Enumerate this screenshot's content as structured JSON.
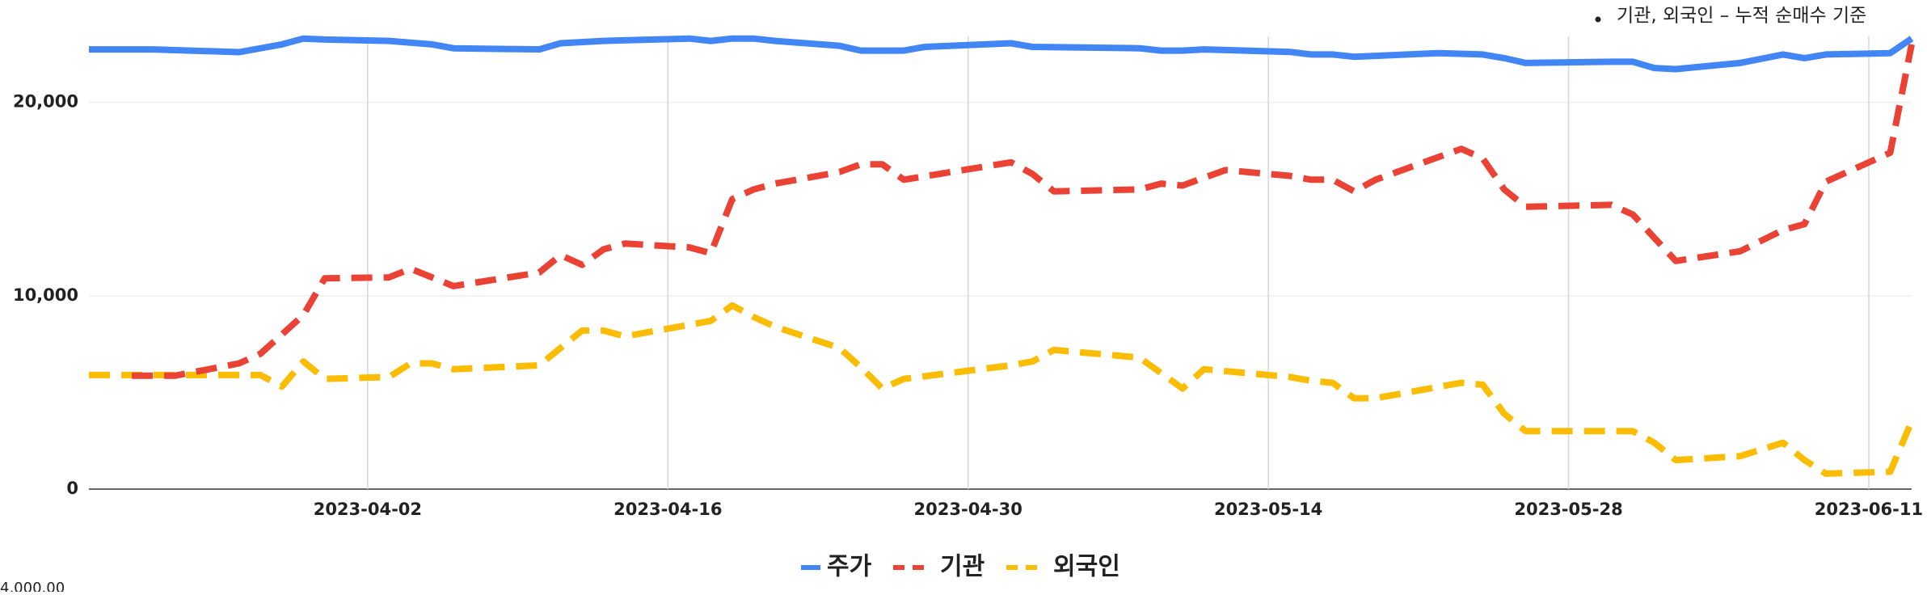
{
  "chart_data": {
    "type": "line",
    "note": "기관, 외국인 – 누적 순매수 기준",
    "corner_text": "4,000.00",
    "xlim": [
      "2023-03-20",
      "2023-06-13"
    ],
    "xticks": [
      "2023-04-02",
      "2023-04-16",
      "2023-04-30",
      "2023-05-14",
      "2023-05-28",
      "2023-06-11"
    ],
    "ylim": [
      0,
      24000
    ],
    "yticks": [
      0,
      {
        "value": 10000,
        "label": "10,000"
      },
      {
        "value": 20000,
        "label": "20,000"
      }
    ],
    "grid": true,
    "legend": "bottom",
    "series": [
      {
        "name": "주가",
        "color": "#4285f4",
        "dash": false,
        "x": [
          "2023-03-20",
          "2023-03-23",
          "2023-03-27",
          "2023-03-29",
          "2023-03-30",
          "2023-03-31",
          "2023-04-03",
          "2023-04-05",
          "2023-04-06",
          "2023-04-10",
          "2023-04-11",
          "2023-04-13",
          "2023-04-17",
          "2023-04-18",
          "2023-04-19",
          "2023-04-20",
          "2023-04-21",
          "2023-04-24",
          "2023-04-25",
          "2023-04-27",
          "2023-04-28",
          "2023-05-02",
          "2023-05-03",
          "2023-05-08",
          "2023-05-09",
          "2023-05-10",
          "2023-05-11",
          "2023-05-15",
          "2023-05-16",
          "2023-05-17",
          "2023-05-18",
          "2023-05-22",
          "2023-05-24",
          "2023-05-25",
          "2023-05-26",
          "2023-05-30",
          "2023-05-31",
          "2023-06-01",
          "2023-06-02",
          "2023-06-05",
          "2023-06-07",
          "2023-06-08",
          "2023-06-09",
          "2023-06-12",
          "2023-06-13"
        ],
        "values": [
          22740,
          22740,
          22600,
          23000,
          23300,
          23250,
          23180,
          23000,
          22800,
          22740,
          23060,
          23180,
          23300,
          23180,
          23300,
          23300,
          23180,
          22930,
          22680,
          22680,
          22870,
          23060,
          22870,
          22800,
          22680,
          22680,
          22740,
          22610,
          22480,
          22480,
          22360,
          22550,
          22480,
          22290,
          22040,
          22100,
          22100,
          21780,
          21720,
          22040,
          22480,
          22290,
          22480,
          22550,
          23300
        ]
      },
      {
        "name": "기관",
        "color": "#ea4335",
        "dash": true,
        "x": [
          "2023-03-22",
          "2023-03-24",
          "2023-03-27",
          "2023-03-28",
          "2023-03-30",
          "2023-03-31",
          "2023-04-03",
          "2023-04-04",
          "2023-04-06",
          "2023-04-10",
          "2023-04-11",
          "2023-04-12",
          "2023-04-13",
          "2023-04-14",
          "2023-04-17",
          "2023-04-18",
          "2023-04-19",
          "2023-04-20",
          "2023-04-21",
          "2023-04-24",
          "2023-04-25",
          "2023-04-26",
          "2023-04-27",
          "2023-05-02",
          "2023-05-03",
          "2023-05-04",
          "2023-05-08",
          "2023-05-09",
          "2023-05-10",
          "2023-05-11",
          "2023-05-12",
          "2023-05-15",
          "2023-05-16",
          "2023-05-17",
          "2023-05-18",
          "2023-05-19",
          "2023-05-22",
          "2023-05-23",
          "2023-05-24",
          "2023-05-25",
          "2023-05-26",
          "2023-05-30",
          "2023-05-31",
          "2023-06-01",
          "2023-06-02",
          "2023-06-05",
          "2023-06-07",
          "2023-06-08",
          "2023-06-09",
          "2023-06-12",
          "2023-06-13"
        ],
        "values": [
          5860,
          5860,
          6500,
          7000,
          9000,
          10900,
          10950,
          11400,
          10500,
          11200,
          12100,
          11600,
          12400,
          12700,
          12500,
          12200,
          15000,
          15500,
          15800,
          16400,
          16800,
          16800,
          16000,
          16900,
          16300,
          15400,
          15500,
          15800,
          15700,
          16100,
          16500,
          16200,
          16000,
          16000,
          15400,
          16000,
          17200,
          17600,
          17100,
          15500,
          14600,
          14700,
          14200,
          13000,
          11800,
          12300,
          13400,
          13700,
          15900,
          17400,
          23000
        ]
      },
      {
        "name": "외국인",
        "color": "#fbbc04",
        "dash": true,
        "x": [
          "2023-03-20",
          "2023-03-27",
          "2023-03-28",
          "2023-03-29",
          "2023-03-30",
          "2023-03-31",
          "2023-04-03",
          "2023-04-04",
          "2023-04-05",
          "2023-04-06",
          "2023-04-10",
          "2023-04-11",
          "2023-04-12",
          "2023-04-13",
          "2023-04-14",
          "2023-04-17",
          "2023-04-18",
          "2023-04-19",
          "2023-04-20",
          "2023-04-21",
          "2023-04-24",
          "2023-04-25",
          "2023-04-26",
          "2023-04-27",
          "2023-05-02",
          "2023-05-03",
          "2023-05-04",
          "2023-05-08",
          "2023-05-09",
          "2023-05-10",
          "2023-05-11",
          "2023-05-15",
          "2023-05-16",
          "2023-05-17",
          "2023-05-18",
          "2023-05-19",
          "2023-05-23",
          "2023-05-24",
          "2023-05-25",
          "2023-05-26",
          "2023-05-30",
          "2023-05-31",
          "2023-06-01",
          "2023-06-02",
          "2023-06-05",
          "2023-06-07",
          "2023-06-08",
          "2023-06-09",
          "2023-06-12",
          "2023-06-13"
        ],
        "values": [
          5900,
          5900,
          5900,
          5300,
          6600,
          5700,
          5800,
          6500,
          6500,
          6200,
          6400,
          7300,
          8200,
          8200,
          7900,
          8500,
          8700,
          9500,
          8900,
          8400,
          7300,
          6300,
          5200,
          5700,
          6400,
          6600,
          7200,
          6800,
          6000,
          5200,
          6200,
          5800,
          5600,
          5500,
          4700,
          4700,
          5500,
          5400,
          3900,
          3000,
          3000,
          3000,
          2400,
          1500,
          1700,
          2400,
          1500,
          800,
          900,
          3500
        ]
      }
    ]
  }
}
